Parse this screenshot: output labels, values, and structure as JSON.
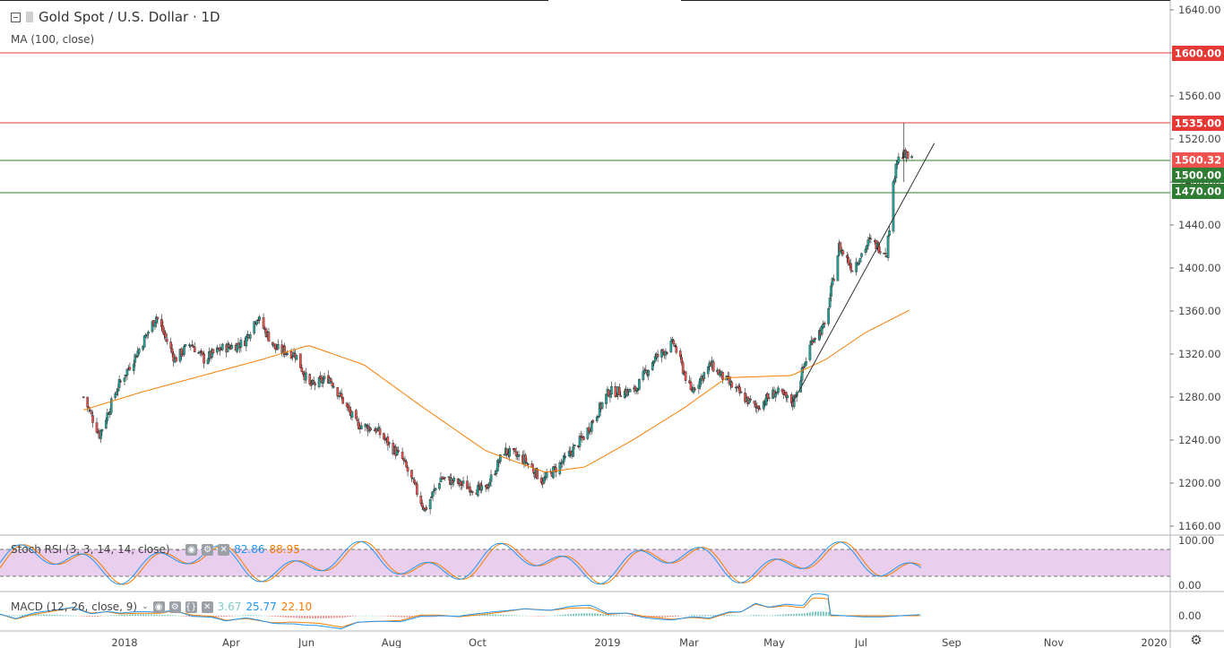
{
  "header": {
    "symbol_title": "Gold Spot / U.S. Dollar · 1D",
    "ma_label": "MA (100, close)"
  },
  "indicators": {
    "stoch": {
      "label": "Stoch RSI (3, 3, 14, 14, close)",
      "k": "82.86",
      "d": "88.95",
      "k_color": "#2196f3",
      "d_color": "#f57c00"
    },
    "macd": {
      "label": "MACD (12, 26, close, 9)",
      "hist": "3.67",
      "macd": "25.77",
      "signal": "22.10",
      "hist_color": "#80cbc4",
      "macd_color": "#2196f3",
      "signal_color": "#f57c00"
    }
  },
  "price_axis": {
    "ticks": [
      "1640.00",
      "1600.00",
      "1560.00",
      "1520.00",
      "1480.00",
      "1440.00",
      "1400.00",
      "1360.00",
      "1320.00",
      "1280.00",
      "1240.00",
      "1200.00",
      "1160.00"
    ],
    "stoch_ticks": [
      "100.00",
      "0.00"
    ],
    "macd_ticks": [
      "0.00"
    ]
  },
  "time_axis": {
    "labels": [
      "2018",
      "Apr",
      "Jun",
      "Aug",
      "Oct",
      "2019",
      "Mar",
      "May",
      "Jul",
      "Sep",
      "Nov",
      "2020"
    ]
  },
  "chart_data": {
    "type": "candlestick",
    "title": "Gold Spot / U.S. Dollar · 1D",
    "ylim": [
      1150,
      1650
    ],
    "horizontal_lines": [
      {
        "price": 1600.0,
        "label": "1600.00",
        "color": "#e53935"
      },
      {
        "price": 1535.0,
        "label": "1535.00",
        "color": "#e53935"
      },
      {
        "price": 1500.0,
        "label": "1500.00",
        "color": "#2e7d32"
      },
      {
        "price": 1470.0,
        "label": "1470.00",
        "color": "#2e7d32"
      }
    ],
    "last_price": {
      "value": 1500.32,
      "label": "1500.32",
      "color": "#ef5350"
    },
    "trendline": {
      "from": {
        "date": "2019-05-21",
        "price": 1275
      },
      "to": {
        "date": "2019-09-05",
        "price": 1516
      }
    },
    "candle_colors": {
      "up": "#26a69a",
      "down": "#ef5350"
    },
    "close_path": [
      [
        "2017-12-01",
        1280
      ],
      [
        "2017-12-13",
        1245
      ],
      [
        "2017-12-27",
        1290
      ],
      [
        "2018-01-10",
        1320
      ],
      [
        "2018-01-25",
        1355
      ],
      [
        "2018-02-08",
        1315
      ],
      [
        "2018-02-20",
        1330
      ],
      [
        "2018-03-02",
        1315
      ],
      [
        "2018-03-15",
        1325
      ],
      [
        "2018-04-01",
        1330
      ],
      [
        "2018-04-11",
        1355
      ],
      [
        "2018-04-25",
        1325
      ],
      [
        "2018-05-10",
        1320
      ],
      [
        "2018-05-21",
        1290
      ],
      [
        "2018-06-05",
        1298
      ],
      [
        "2018-06-25",
        1255
      ],
      [
        "2018-07-10",
        1250
      ],
      [
        "2018-07-30",
        1222
      ],
      [
        "2018-08-16",
        1175
      ],
      [
        "2018-08-28",
        1205
      ],
      [
        "2018-09-15",
        1198
      ],
      [
        "2018-09-30",
        1192
      ],
      [
        "2018-10-15",
        1230
      ],
      [
        "2018-10-30",
        1222
      ],
      [
        "2018-11-13",
        1202
      ],
      [
        "2018-11-30",
        1222
      ],
      [
        "2018-12-15",
        1245
      ],
      [
        "2019-01-02",
        1285
      ],
      [
        "2019-01-21",
        1285
      ],
      [
        "2019-02-05",
        1315
      ],
      [
        "2019-02-20",
        1330
      ],
      [
        "2019-03-05",
        1285
      ],
      [
        "2019-03-20",
        1310
      ],
      [
        "2019-04-05",
        1290
      ],
      [
        "2019-04-23",
        1270
      ],
      [
        "2019-05-08",
        1285
      ],
      [
        "2019-05-21",
        1275
      ],
      [
        "2019-06-05",
        1335
      ],
      [
        "2019-06-14",
        1345
      ],
      [
        "2019-06-25",
        1420
      ],
      [
        "2019-07-05",
        1400
      ],
      [
        "2019-07-18",
        1425
      ],
      [
        "2019-07-31",
        1415
      ],
      [
        "2019-08-07",
        1500
      ],
      [
        "2019-08-13",
        1505
      ],
      [
        "2019-08-19",
        1500
      ]
    ],
    "ma100_path": [
      [
        "2017-12-01",
        1268
      ],
      [
        "2018-01-15",
        1285
      ],
      [
        "2018-03-01",
        1300
      ],
      [
        "2018-04-15",
        1315
      ],
      [
        "2018-05-20",
        1328
      ],
      [
        "2018-07-01",
        1310
      ],
      [
        "2018-08-15",
        1270
      ],
      [
        "2018-10-01",
        1230
      ],
      [
        "2018-11-15",
        1210
      ],
      [
        "2018-12-15",
        1215
      ],
      [
        "2019-01-20",
        1240
      ],
      [
        "2019-02-28",
        1270
      ],
      [
        "2019-04-01",
        1298
      ],
      [
        "2019-05-20",
        1300
      ],
      [
        "2019-06-15",
        1315
      ],
      [
        "2019-07-15",
        1340
      ],
      [
        "2019-08-19",
        1362
      ]
    ]
  }
}
